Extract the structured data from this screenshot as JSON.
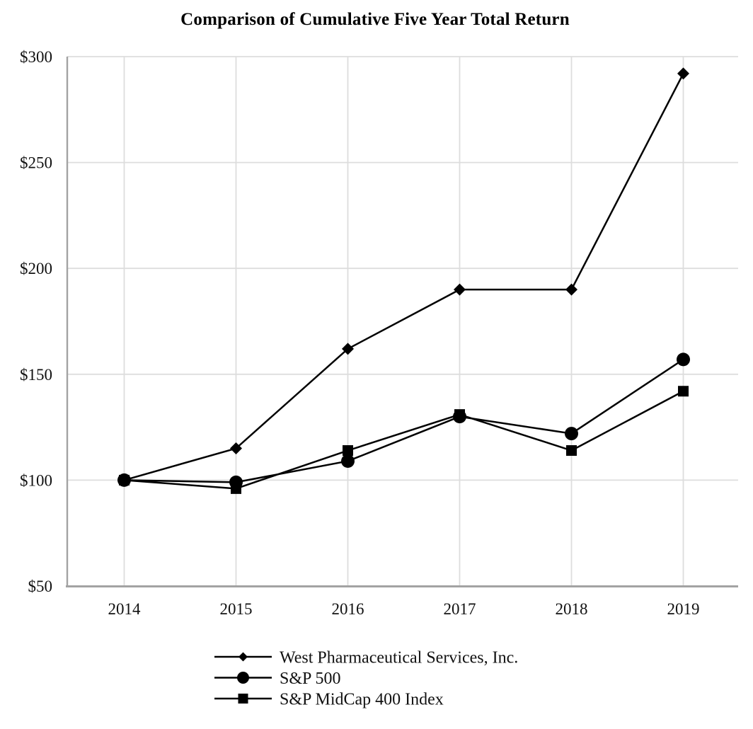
{
  "chart_data": {
    "type": "line",
    "title": "Comparison of Cumulative Five Year Total Return",
    "x_labels": [
      "2014",
      "2015",
      "2016",
      "2017",
      "2018",
      "2019"
    ],
    "y_ticks": [
      {
        "value": 50,
        "label": "$50"
      },
      {
        "value": 100,
        "label": "$100"
      },
      {
        "value": 150,
        "label": "$150"
      },
      {
        "value": 200,
        "label": "$200"
      },
      {
        "value": 250,
        "label": "$250"
      },
      {
        "value": 300,
        "label": "$300"
      }
    ],
    "ylim": [
      50,
      300
    ],
    "xlabel": "",
    "ylabel": "",
    "grid": true,
    "legend_position": "bottom-left",
    "series": [
      {
        "name": "West Pharmaceutical Services, Inc.",
        "marker": "diamond",
        "color": "#000000",
        "values": [
          100,
          115,
          162,
          190,
          190,
          292
        ]
      },
      {
        "name": "S&P 500",
        "marker": "circle",
        "color": "#000000",
        "values": [
          100,
          99,
          109,
          130,
          122,
          157
        ]
      },
      {
        "name": "S&P MidCap 400 Index",
        "marker": "square",
        "color": "#000000",
        "values": [
          100,
          96,
          114,
          131,
          114,
          142
        ]
      }
    ],
    "colors": {
      "background": "#ffffff",
      "text": "#111111",
      "title": "#000000",
      "gridline": "#dddddd",
      "axis": "#a3a3a3",
      "series": "#000000"
    }
  }
}
